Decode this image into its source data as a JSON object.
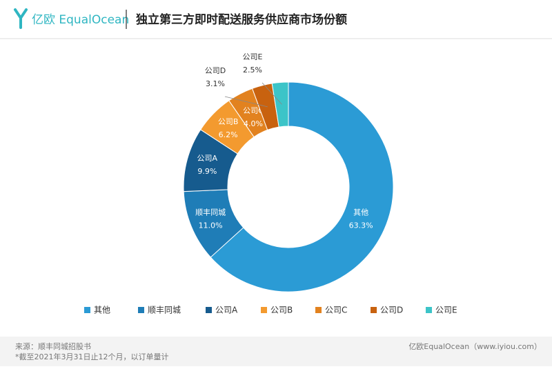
{
  "header": {
    "logo": "亿欧 EqualOcean",
    "title": "独立第三方即时配送服务供应商市场份额"
  },
  "chart_data": {
    "type": "donut",
    "categories": [
      "其他",
      "顺丰同城",
      "公司A",
      "公司B",
      "公司C",
      "公司D",
      "公司E"
    ],
    "values": [
      63.3,
      11.0,
      9.9,
      6.2,
      4.0,
      3.1,
      2.5
    ],
    "value_labels": [
      "63.3%",
      "11.0%",
      "9.9%",
      "6.2%",
      "4.0%",
      "3.1%",
      "2.5%"
    ],
    "colors": [
      "#2b9bd5",
      "#1f7db7",
      "#165b8e",
      "#f39a2f",
      "#e2821f",
      "#c8620f",
      "#3cc4c8"
    ],
    "legend": "bottom"
  },
  "footer": {
    "source": "来源：顺丰同城招股书",
    "note": "*截至2021年3月31日止12个月，以订单量计",
    "brand": "亿欧EqualOcean（www.iyiou.com）"
  }
}
